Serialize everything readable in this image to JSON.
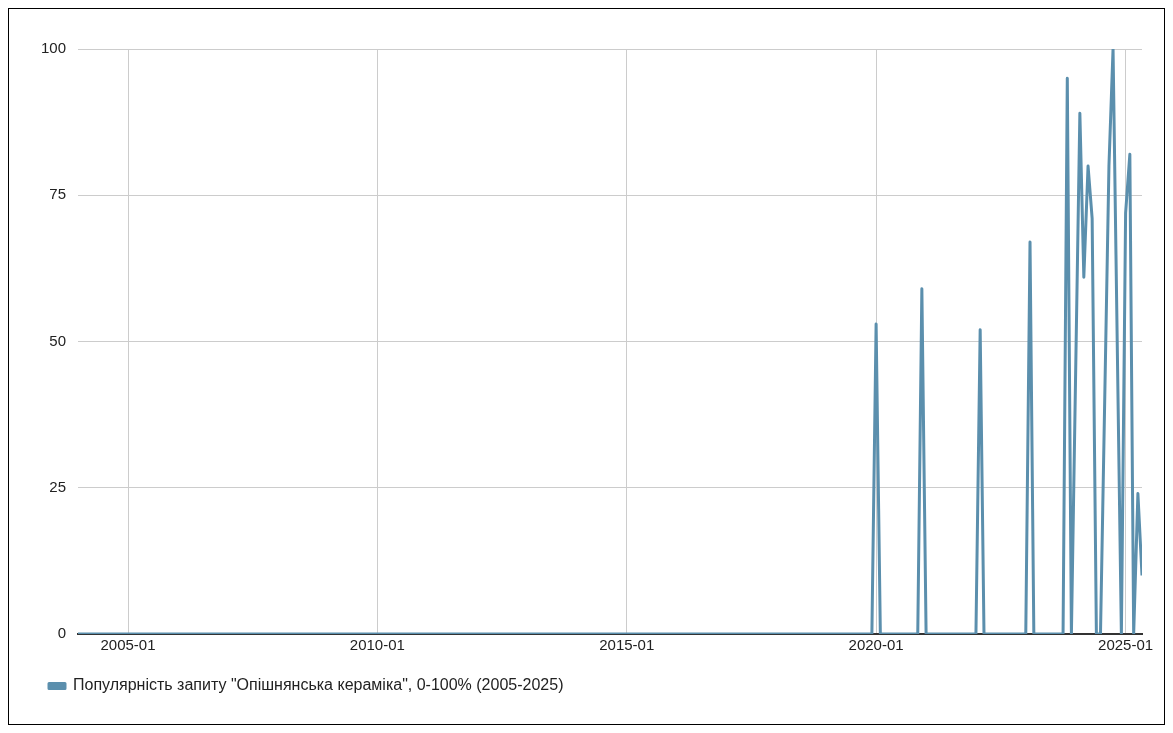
{
  "chart_data": {
    "type": "line",
    "x": [
      "2004-01",
      "2019-12",
      "2020-01",
      "2020-02",
      "2020-11",
      "2020-12",
      "2021-01",
      "2022-01",
      "2022-02",
      "2022-03",
      "2023-01",
      "2023-02",
      "2023-03",
      "2023-10",
      "2023-11",
      "2023-12",
      "2024-02",
      "2024-03",
      "2024-04",
      "2024-05",
      "2024-06",
      "2024-07",
      "2024-09",
      "2024-10",
      "2024-12",
      "2025-01",
      "2025-02",
      "2025-03",
      "2025-04",
      "2025-05"
    ],
    "series": [
      {
        "name": "Популярність запиту \"Опішнянська кераміка\", 0-100% (2005-2025)",
        "color": "#5b8fad",
        "values": [
          0,
          0,
          53,
          0,
          0,
          59,
          0,
          0,
          52,
          0,
          0,
          67,
          0,
          0,
          95,
          0,
          89,
          61,
          80,
          71,
          0,
          0,
          80,
          100,
          0,
          72,
          82,
          0,
          24,
          10
        ]
      }
    ],
    "xlim": [
      "2004-01",
      "2025-05"
    ],
    "xticks": [
      "2005-01",
      "2010-01",
      "2015-01",
      "2020-01",
      "2025-01"
    ],
    "ylim": [
      0,
      100
    ],
    "yticks": [
      0,
      25,
      50,
      75,
      100
    ],
    "grid": true,
    "legend": "bottom left",
    "marker": "none",
    "line_style": "solid"
  }
}
